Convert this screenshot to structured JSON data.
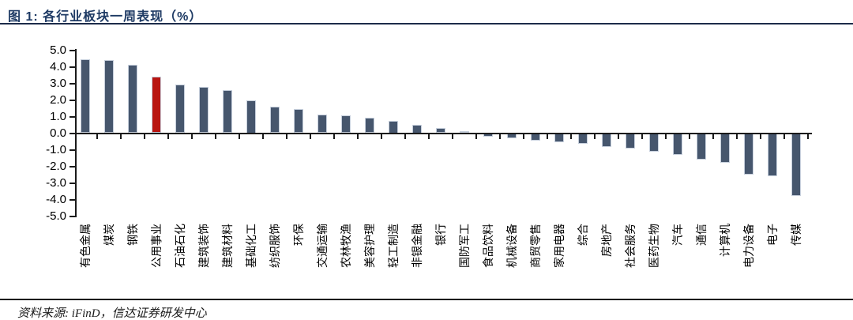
{
  "figure": {
    "title": "图 1: 各行业板块一周表现（%）",
    "source": "资料来源: iFinD，信达证券研发中心"
  },
  "chart_data": {
    "type": "bar",
    "title": "各行业板块一周表现（%）",
    "categories": [
      "有色金属",
      "煤炭",
      "钢铁",
      "公用事业",
      "石油石化",
      "建筑装饰",
      "建筑材料",
      "基础化工",
      "纺织服饰",
      "环保",
      "交通运输",
      "农林牧渔",
      "美容护理",
      "轻工制造",
      "非银金融",
      "银行",
      "国防军工",
      "食品饮料",
      "机械设备",
      "商贸零售",
      "家用电器",
      "综合",
      "房地产",
      "社会服务",
      "医药生物",
      "汽车",
      "通信",
      "计算机",
      "电力设备",
      "电子",
      "传媒"
    ],
    "values": [
      4.45,
      4.4,
      4.1,
      3.4,
      2.95,
      2.8,
      2.6,
      2.0,
      1.6,
      1.45,
      1.1,
      1.05,
      0.95,
      0.75,
      0.5,
      0.3,
      0.12,
      -0.2,
      -0.3,
      -0.45,
      -0.55,
      -0.65,
      -0.85,
      -0.95,
      -1.1,
      -1.3,
      -1.6,
      -1.8,
      -2.5,
      -2.6,
      -3.8
    ],
    "highlight_index": 3,
    "bar_color": "#46566d",
    "highlight_color": "#b91511",
    "axis_color": "#1a1a1a",
    "ylim": [
      -5,
      5
    ],
    "ytick_step": 1.0,
    "ytick_labels": [
      "5.0",
      "4.0",
      "3.0",
      "2.0",
      "1.0",
      "0.0",
      "-1.0",
      "-2.0",
      "-3.0",
      "-4.0",
      "-5.0"
    ],
    "xlabel": "",
    "ylabel": "",
    "grid": false,
    "legend": false
  }
}
